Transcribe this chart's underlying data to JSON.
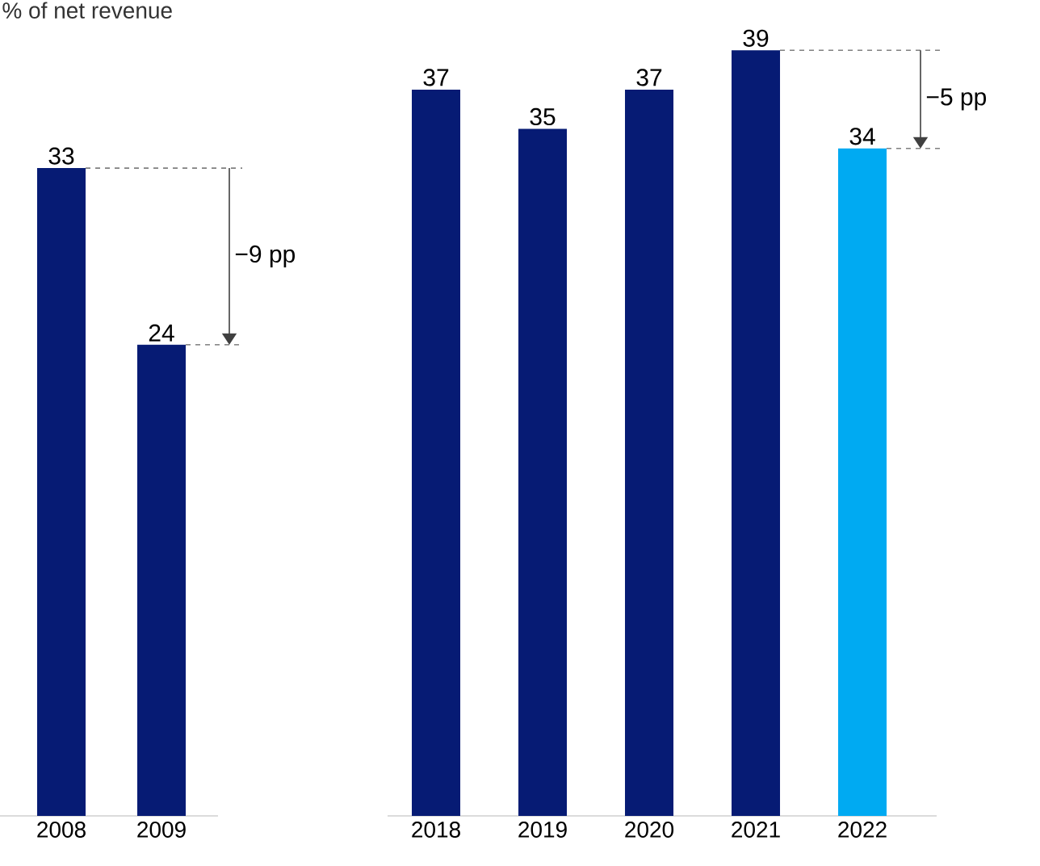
{
  "chart_data": [
    {
      "type": "bar",
      "title": "% of net revenue",
      "categories": [
        "2008",
        "2009"
      ],
      "values": [
        33,
        24
      ],
      "colors": [
        "#061b74",
        "#061b74"
      ],
      "data_labels": true,
      "tick_labels": "x",
      "annotations": [
        "−9 pp"
      ],
      "ref_lines": [
        {
          "axis": "y",
          "value": 33,
          "color": "#808080",
          "line_style": "dashed"
        },
        {
          "axis": "y",
          "value": 24,
          "color": "#808080",
          "line_style": "dashed"
        }
      ]
    },
    {
      "type": "bar",
      "categories": [
        "2018",
        "2019",
        "2020",
        "2021",
        "2022"
      ],
      "values": [
        37,
        35,
        37,
        39,
        34
      ],
      "colors": [
        "#061b74",
        "#061b74",
        "#061b74",
        "#061b74",
        "#00aaf2"
      ],
      "data_labels": true,
      "tick_labels": "x",
      "annotations": [
        "−5 pp"
      ],
      "ref_lines": [
        {
          "axis": "y",
          "value": 39,
          "color": "#808080",
          "line_style": "dashed"
        },
        {
          "axis": "y",
          "value": 34,
          "color": "#808080",
          "line_style": "dashed"
        }
      ]
    }
  ]
}
